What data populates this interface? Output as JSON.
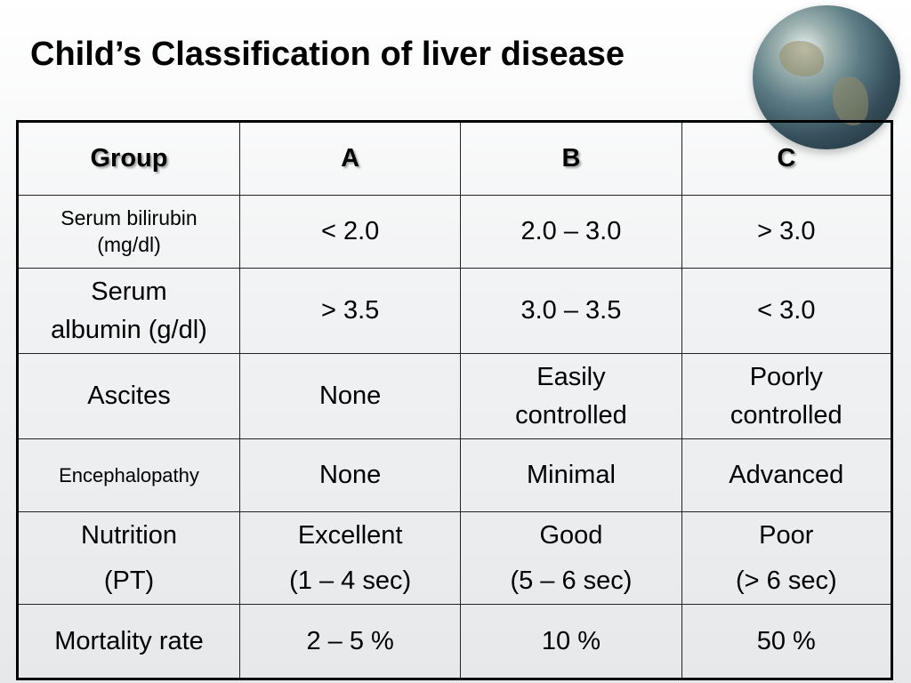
{
  "title": "Child’s Classification of liver disease",
  "header": [
    "Group",
    "A",
    "B",
    "C"
  ],
  "rows": [
    {
      "label": [
        "Serum bilirubin",
        "(mg/dl)"
      ],
      "cells": [
        "< 2.0",
        "2.0 – 3.0",
        "> 3.0"
      ]
    },
    {
      "label": [
        "Serum",
        "albumin (g/dl)"
      ],
      "cells": [
        "> 3.5",
        "3.0 – 3.5",
        "< 3.0"
      ]
    },
    {
      "label": [
        "Ascites"
      ],
      "cells": [
        [
          "None"
        ],
        [
          "Easily",
          "controlled"
        ],
        [
          "Poorly",
          "controlled"
        ]
      ]
    },
    {
      "label": [
        "Encephalopathy"
      ],
      "cells": [
        "None",
        "Minimal",
        "Advanced"
      ]
    },
    {
      "label": [
        "Nutrition",
        "(PT)"
      ],
      "cells": [
        [
          "Excellent",
          "(1 – 4 sec)"
        ],
        [
          "Good",
          "(5 – 6 sec)"
        ],
        [
          "Poor",
          "(> 6 sec)"
        ]
      ]
    },
    {
      "label": [
        "Mortality rate"
      ],
      "cells": [
        "2 – 5 %",
        "10 %",
        "50 %"
      ]
    }
  ]
}
